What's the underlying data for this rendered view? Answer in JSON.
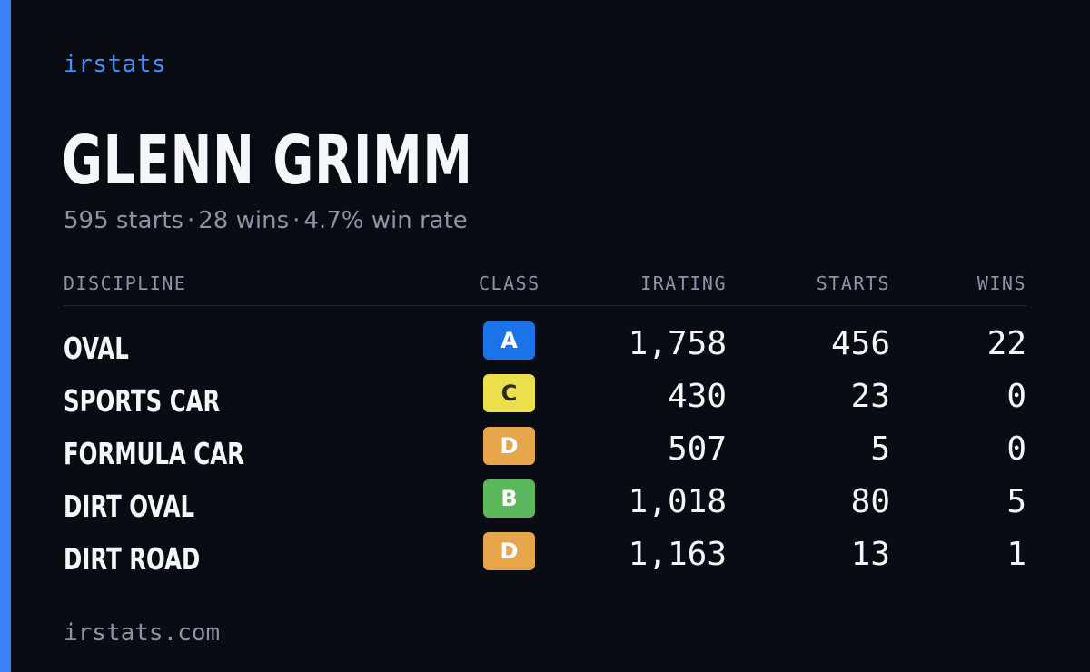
{
  "brand": "irstats",
  "driver": {
    "name": "GLENN GRIMM",
    "starts_text": "595 starts",
    "wins_text": "28 wins",
    "win_rate_text": "4.7% win rate",
    "separator": "·"
  },
  "table": {
    "headers": {
      "discipline": "DISCIPLINE",
      "class": "CLASS",
      "irating": "IRATING",
      "starts": "STARTS",
      "wins": "WINS"
    },
    "rows": [
      {
        "discipline": "OVAL",
        "class": "A",
        "class_color": "#1a73e8",
        "irating": "1,758",
        "starts": "456",
        "wins": "22"
      },
      {
        "discipline": "SPORTS CAR",
        "class": "C",
        "class_color": "#ecdf4c",
        "irating": "430",
        "starts": "23",
        "wins": "0"
      },
      {
        "discipline": "FORMULA CAR",
        "class": "D",
        "class_color": "#e8a64c",
        "irating": "507",
        "starts": "5",
        "wins": "0"
      },
      {
        "discipline": "DIRT OVAL",
        "class": "B",
        "class_color": "#5cb85c",
        "irating": "1,018",
        "starts": "80",
        "wins": "5"
      },
      {
        "discipline": "DIRT ROAD",
        "class": "D",
        "class_color": "#e8a64c",
        "irating": "1,163",
        "starts": "13",
        "wins": "1"
      }
    ]
  },
  "footer": "irstats.com",
  "colors": {
    "background": "#0a0c13",
    "accent": "#3b82f6",
    "text": "#f4f6fa",
    "muted": "#8b93a5"
  }
}
